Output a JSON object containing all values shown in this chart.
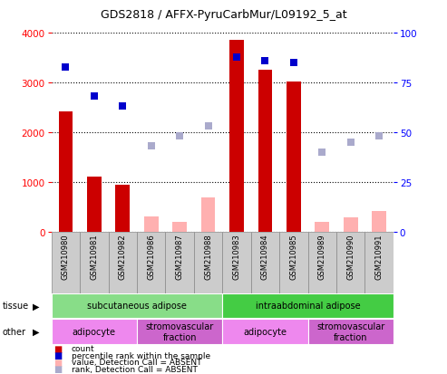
{
  "title": "GDS2818 / AFFX-PyruCarbMur/L09192_5_at",
  "samples": [
    "GSM210980",
    "GSM210981",
    "GSM210982",
    "GSM210986",
    "GSM210987",
    "GSM210988",
    "GSM210983",
    "GSM210984",
    "GSM210985",
    "GSM210989",
    "GSM210990",
    "GSM210991"
  ],
  "count_values": [
    2420,
    1100,
    940,
    null,
    null,
    null,
    3850,
    3250,
    3020,
    null,
    null,
    null
  ],
  "count_absent_values": [
    null,
    null,
    null,
    310,
    200,
    680,
    null,
    null,
    null,
    190,
    280,
    420
  ],
  "percentile_present": [
    83,
    68,
    63,
    null,
    null,
    null,
    88,
    86,
    85,
    null,
    null,
    null
  ],
  "percentile_absent": [
    null,
    null,
    null,
    43,
    48,
    53,
    null,
    null,
    null,
    40,
    45,
    48
  ],
  "bar_color_present": "#cc0000",
  "bar_color_absent": "#ffb0b0",
  "dot_color_present": "#0000cc",
  "dot_color_absent": "#aaaacc",
  "ylim_left": [
    0,
    4000
  ],
  "ylim_right": [
    0,
    100
  ],
  "yticks_left": [
    0,
    1000,
    2000,
    3000,
    4000
  ],
  "yticks_right": [
    0,
    25,
    50,
    75,
    100
  ],
  "tissue_groups": [
    {
      "label": "subcutaneous adipose",
      "start": 0,
      "end": 6,
      "color": "#88dd88"
    },
    {
      "label": "intraabdominal adipose",
      "start": 6,
      "end": 12,
      "color": "#44cc44"
    }
  ],
  "other_groups": [
    {
      "label": "adipocyte",
      "start": 0,
      "end": 3,
      "color": "#ee88ee"
    },
    {
      "label": "stromovascular\nfraction",
      "start": 3,
      "end": 6,
      "color": "#cc66cc"
    },
    {
      "label": "adipocyte",
      "start": 6,
      "end": 9,
      "color": "#ee88ee"
    },
    {
      "label": "stromovascular\nfraction",
      "start": 9,
      "end": 12,
      "color": "#cc66cc"
    }
  ],
  "legend_items": [
    {
      "label": "count",
      "color": "#cc0000"
    },
    {
      "label": "percentile rank within the sample",
      "color": "#0000cc"
    },
    {
      "label": "value, Detection Call = ABSENT",
      "color": "#ffb0b0"
    },
    {
      "label": "rank, Detection Call = ABSENT",
      "color": "#aaaacc"
    }
  ],
  "bar_width": 0.5,
  "dot_size": 40,
  "background_color": "#ffffff",
  "plot_bg_color": "#ffffff",
  "grid_color": "#000000",
  "label_bg_color": "#cccccc"
}
